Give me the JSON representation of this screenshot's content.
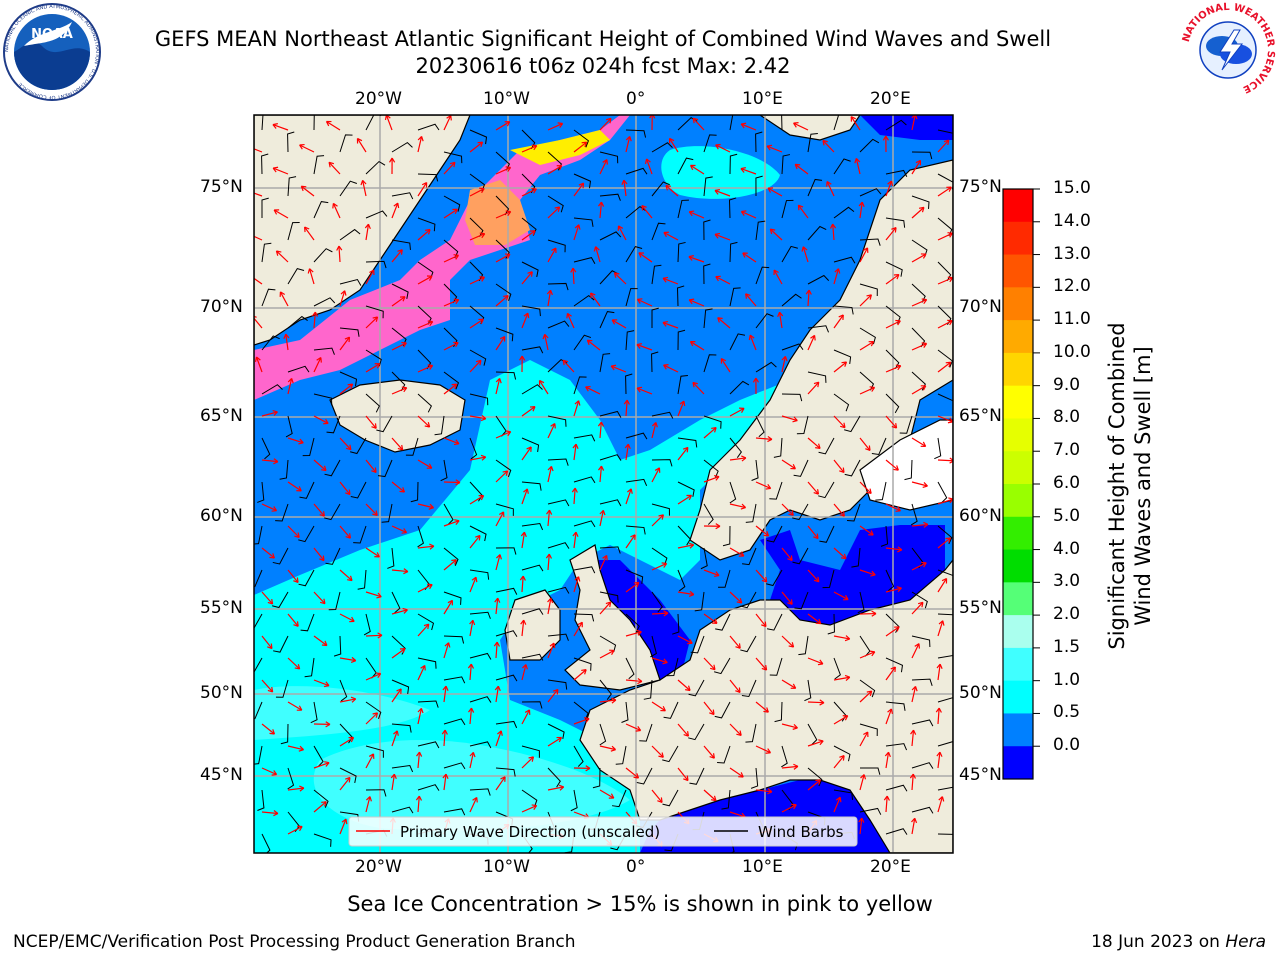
{
  "header": {
    "title_line1": "GEFS MEAN Northeast Atlantic Significant Height of Combined Wind Waves and Swell",
    "title_line2": "20230616 t06z 024h fcst   Max: 2.42"
  },
  "logos": {
    "noara_text": "NOAA",
    "noaa_ring": "NATIONAL OCEANIC AND ATMOSPHERIC ADMINISTRATION · U.S. DEPARTMENT OF COMMERCE",
    "nws_ring": "NATIONAL WEATHER SERVICE"
  },
  "map": {
    "lon_top_labels": [
      "20°W",
      "10°W",
      "0°",
      "10°E",
      "20°E"
    ],
    "lon_bottom_labels": [
      "20°W",
      "10°W",
      "0°",
      "10°E",
      "20°E"
    ],
    "lat_left_labels": [
      "75°N",
      "70°N",
      "65°N",
      "60°N",
      "55°N",
      "50°N",
      "45°N"
    ],
    "lat_right_labels": [
      "75°N",
      "70°N",
      "65°N",
      "60°N",
      "55°N",
      "50°N",
      "45°N"
    ],
    "legend": {
      "wave_label": "Primary Wave Direction (unscaled)",
      "wind_label": "Wind Barbs"
    },
    "colors": {
      "land": "#efecdc",
      "ocean_0_5": "#0000ff",
      "ocean_1_0": "#0080ff",
      "ocean_1_5": "#00ffff",
      "ocean_2_0": "#40ffff",
      "ice_pink": "#ff66cc",
      "ice_orange": "#ffa060",
      "ice_yellow": "#ffee00",
      "wave_arrow": "#ff0000",
      "wind_barb": "#000000"
    }
  },
  "colorbar": {
    "ticks": [
      "15.0",
      "14.0",
      "13.0",
      "12.0",
      "11.0",
      "10.0",
      "9.0",
      "8.0",
      "7.0",
      "6.0",
      "5.0",
      "4.0",
      "3.0",
      "2.0",
      "1.5",
      "1.0",
      "0.5",
      "0.0"
    ],
    "colors": [
      "#ff0000",
      "#ff2a00",
      "#ff5500",
      "#ff8000",
      "#ffaa00",
      "#ffd500",
      "#ffff00",
      "#e6ff00",
      "#ccff00",
      "#99ff00",
      "#33ee00",
      "#00dd00",
      "#55ff77",
      "#aaffee",
      "#40ffff",
      "#00ffff",
      "#0080ff",
      "#0000ff"
    ],
    "label_line1": "Significant Height of Combined",
    "label_line2": "Wind Waves and Swell [m]"
  },
  "footer": {
    "subtitle": "Sea Ice Concentration > 15% is shown in pink to yellow",
    "left": "NCEP/EMC/Verification Post Processing Product Generation Branch",
    "right_date": "18 Jun 2023 on ",
    "right_host": "Hera"
  }
}
